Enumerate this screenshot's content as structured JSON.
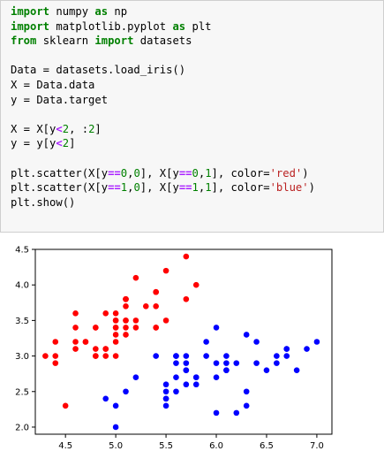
{
  "cell": {
    "lines": [
      [
        {
          "t": "import",
          "c": "kw"
        },
        {
          "t": " numpy "
        },
        {
          "t": "as",
          "c": "kw"
        },
        {
          "t": " np"
        }
      ],
      [
        {
          "t": "import",
          "c": "kw"
        },
        {
          "t": " matplotlib.pyplot "
        },
        {
          "t": "as",
          "c": "kw"
        },
        {
          "t": " plt"
        }
      ],
      [
        {
          "t": "from",
          "c": "kw"
        },
        {
          "t": " sklearn "
        },
        {
          "t": "import",
          "c": "kw"
        },
        {
          "t": " datasets"
        }
      ],
      [],
      [
        {
          "t": "Data = datasets.load_iris()"
        }
      ],
      [
        {
          "t": "X = Data.data"
        }
      ],
      [
        {
          "t": "y = Data.target"
        }
      ],
      [],
      [
        {
          "t": "X = X[y"
        },
        {
          "t": "<",
          "c": "op"
        },
        {
          "t": "2",
          "c": "num"
        },
        {
          "t": ", :"
        },
        {
          "t": "2",
          "c": "num"
        },
        {
          "t": "]"
        }
      ],
      [
        {
          "t": "y = y[y"
        },
        {
          "t": "<",
          "c": "op"
        },
        {
          "t": "2",
          "c": "num"
        },
        {
          "t": "]"
        }
      ],
      [],
      [
        {
          "t": "plt.scatter(X[y"
        },
        {
          "t": "==",
          "c": "op"
        },
        {
          "t": "0",
          "c": "num"
        },
        {
          "t": ","
        },
        {
          "t": "0",
          "c": "num"
        },
        {
          "t": "], X[y"
        },
        {
          "t": "==",
          "c": "op"
        },
        {
          "t": "0",
          "c": "num"
        },
        {
          "t": ","
        },
        {
          "t": "1",
          "c": "num"
        },
        {
          "t": "], color="
        },
        {
          "t": "'red'",
          "c": "str"
        },
        {
          "t": ")"
        }
      ],
      [
        {
          "t": "plt.scatter(X[y"
        },
        {
          "t": "==",
          "c": "op"
        },
        {
          "t": "1",
          "c": "num"
        },
        {
          "t": ","
        },
        {
          "t": "0",
          "c": "num"
        },
        {
          "t": "], X[y"
        },
        {
          "t": "==",
          "c": "op"
        },
        {
          "t": "1",
          "c": "num"
        },
        {
          "t": ","
        },
        {
          "t": "1",
          "c": "num"
        },
        {
          "t": "], color="
        },
        {
          "t": "'blue'",
          "c": "str"
        },
        {
          "t": ")"
        }
      ],
      [
        {
          "t": "plt.show()"
        }
      ]
    ]
  },
  "chart_data": {
    "type": "scatter",
    "title": "",
    "xlabel": "",
    "ylabel": "",
    "xlim": [
      4.2,
      7.15
    ],
    "ylim": [
      1.9,
      4.5
    ],
    "xticks": [
      "4.5",
      "5.0",
      "5.5",
      "6.0",
      "6.5",
      "7.0"
    ],
    "yticks": [
      "2.0",
      "2.5",
      "3.0",
      "3.5",
      "4.0",
      "4.5"
    ],
    "grid": false,
    "legend": null,
    "series": [
      {
        "color": "#ff0000",
        "points": [
          [
            5.1,
            3.5
          ],
          [
            4.9,
            3.0
          ],
          [
            4.7,
            3.2
          ],
          [
            4.6,
            3.1
          ],
          [
            5.0,
            3.6
          ],
          [
            5.4,
            3.9
          ],
          [
            4.6,
            3.4
          ],
          [
            5.0,
            3.4
          ],
          [
            4.4,
            2.9
          ],
          [
            4.9,
            3.1
          ],
          [
            5.4,
            3.7
          ],
          [
            4.8,
            3.4
          ],
          [
            4.8,
            3.0
          ],
          [
            4.3,
            3.0
          ],
          [
            5.8,
            4.0
          ],
          [
            5.7,
            4.4
          ],
          [
            5.4,
            3.9
          ],
          [
            5.1,
            3.5
          ],
          [
            5.7,
            3.8
          ],
          [
            5.1,
            3.8
          ],
          [
            5.4,
            3.4
          ],
          [
            5.1,
            3.7
          ],
          [
            4.6,
            3.6
          ],
          [
            5.1,
            3.3
          ],
          [
            4.8,
            3.4
          ],
          [
            5.0,
            3.0
          ],
          [
            5.0,
            3.4
          ],
          [
            5.2,
            3.5
          ],
          [
            5.2,
            3.4
          ],
          [
            4.7,
            3.2
          ],
          [
            4.8,
            3.1
          ],
          [
            5.4,
            3.4
          ],
          [
            5.2,
            4.1
          ],
          [
            5.5,
            4.2
          ],
          [
            4.9,
            3.1
          ],
          [
            5.0,
            3.2
          ],
          [
            5.5,
            3.5
          ],
          [
            4.9,
            3.6
          ],
          [
            4.4,
            3.0
          ],
          [
            5.1,
            3.4
          ],
          [
            5.0,
            3.5
          ],
          [
            4.5,
            2.3
          ],
          [
            4.4,
            3.2
          ],
          [
            5.0,
            3.5
          ],
          [
            5.1,
            3.8
          ],
          [
            4.8,
            3.0
          ],
          [
            5.1,
            3.8
          ],
          [
            4.6,
            3.2
          ],
          [
            5.3,
            3.7
          ],
          [
            5.0,
            3.3
          ]
        ]
      },
      {
        "color": "#0000ff",
        "points": [
          [
            7.0,
            3.2
          ],
          [
            6.4,
            3.2
          ],
          [
            6.9,
            3.1
          ],
          [
            5.5,
            2.3
          ],
          [
            6.5,
            2.8
          ],
          [
            5.7,
            2.8
          ],
          [
            6.3,
            3.3
          ],
          [
            4.9,
            2.4
          ],
          [
            6.6,
            2.9
          ],
          [
            5.2,
            2.7
          ],
          [
            5.0,
            2.0
          ],
          [
            5.9,
            3.0
          ],
          [
            6.0,
            2.2
          ],
          [
            6.1,
            2.9
          ],
          [
            5.6,
            2.9
          ],
          [
            6.7,
            3.1
          ],
          [
            5.6,
            3.0
          ],
          [
            5.8,
            2.7
          ],
          [
            6.2,
            2.2
          ],
          [
            5.6,
            2.5
          ],
          [
            5.9,
            3.2
          ],
          [
            6.1,
            2.8
          ],
          [
            6.3,
            2.5
          ],
          [
            6.1,
            2.8
          ],
          [
            6.4,
            2.9
          ],
          [
            6.6,
            3.0
          ],
          [
            6.8,
            2.8
          ],
          [
            6.7,
            3.0
          ],
          [
            6.0,
            2.9
          ],
          [
            5.7,
            2.6
          ],
          [
            5.5,
            2.4
          ],
          [
            5.5,
            2.4
          ],
          [
            5.8,
            2.7
          ],
          [
            6.0,
            2.7
          ],
          [
            5.4,
            3.0
          ],
          [
            6.0,
            3.4
          ],
          [
            6.7,
            3.1
          ],
          [
            6.3,
            2.3
          ],
          [
            5.6,
            3.0
          ],
          [
            5.5,
            2.5
          ],
          [
            5.5,
            2.6
          ],
          [
            6.1,
            3.0
          ],
          [
            5.8,
            2.6
          ],
          [
            5.0,
            2.3
          ],
          [
            5.6,
            2.7
          ],
          [
            5.7,
            3.0
          ],
          [
            5.7,
            2.9
          ],
          [
            6.2,
            2.9
          ],
          [
            5.1,
            2.5
          ],
          [
            5.7,
            2.8
          ]
        ]
      }
    ]
  }
}
